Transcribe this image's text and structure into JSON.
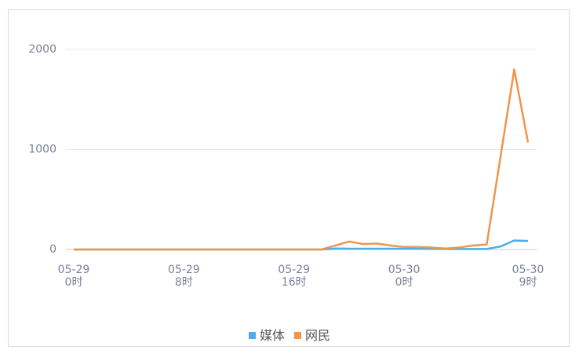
{
  "chart_data": {
    "type": "line",
    "categories": [
      "05-29\n0时",
      null,
      null,
      null,
      null,
      null,
      null,
      null,
      "05-29\n8时",
      null,
      null,
      null,
      null,
      null,
      null,
      null,
      "05-29\n16时",
      null,
      null,
      null,
      null,
      null,
      null,
      null,
      "05-30\n0时",
      null,
      null,
      null,
      null,
      null,
      null,
      null,
      null,
      "05-30\n9时"
    ],
    "series": [
      {
        "name": "媒体",
        "color": "#4aaee8",
        "values": [
          0,
          0,
          0,
          0,
          0,
          0,
          0,
          0,
          0,
          0,
          0,
          0,
          0,
          0,
          0,
          0,
          0,
          0,
          0,
          10,
          8,
          8,
          8,
          8,
          8,
          8,
          6,
          5,
          5,
          5,
          5,
          30,
          90,
          85
        ]
      },
      {
        "name": "网民",
        "color": "#f0954a",
        "values": [
          0,
          0,
          0,
          0,
          0,
          0,
          0,
          0,
          0,
          0,
          0,
          0,
          0,
          0,
          0,
          0,
          0,
          0,
          0,
          40,
          80,
          55,
          60,
          40,
          25,
          25,
          20,
          10,
          20,
          40,
          50,
          925,
          1800,
          1070
        ]
      }
    ],
    "ylim": [
      0,
      2000
    ],
    "yticks": [
      0,
      1000,
      2000
    ],
    "grid": true,
    "legend": "bottom"
  }
}
